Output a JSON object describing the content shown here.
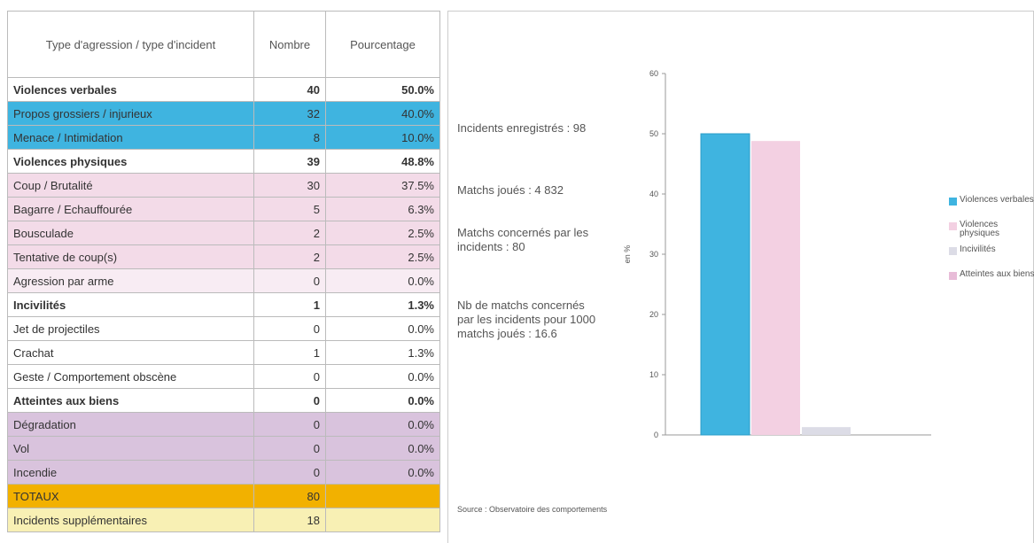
{
  "table": {
    "header": [
      "Type d'agression / type d'incident",
      "Nombre",
      "Pourcentage"
    ],
    "rows": [
      {
        "cells": [
          "Violences verbales",
          "40",
          "50.0%"
        ],
        "bold": true,
        "color": "#ffffff"
      },
      {
        "cells": [
          "Propos grossiers / injurieux",
          "32",
          "40.0%"
        ],
        "bold": false,
        "color": "#3fb4e0"
      },
      {
        "cells": [
          "Menace / Intimidation",
          "8",
          "10.0%"
        ],
        "bold": false,
        "color": "#3fb4e0"
      },
      {
        "cells": [
          "Violences physiques",
          "39",
          "48.8%"
        ],
        "bold": true,
        "color": "#ffffff"
      },
      {
        "cells": [
          "Coup / Brutalité",
          "30",
          "37.5%"
        ],
        "bold": false,
        "color": "#f3dbe8"
      },
      {
        "cells": [
          "Bagarre / Echauffourée",
          "5",
          "6.3%"
        ],
        "bold": false,
        "color": "#f3dbe8"
      },
      {
        "cells": [
          "Bousculade",
          "2",
          "2.5%"
        ],
        "bold": false,
        "color": "#f3dbe8"
      },
      {
        "cells": [
          "Tentative de coup(s)",
          "2",
          "2.5%"
        ],
        "bold": false,
        "color": "#f3dbe8"
      },
      {
        "cells": [
          "Agression par arme",
          "0",
          "0.0%"
        ],
        "bold": false,
        "color": "#f8ecf3"
      },
      {
        "cells": [
          "Incivilités",
          "1",
          "1.3%"
        ],
        "bold": true,
        "color": "#ffffff"
      },
      {
        "cells": [
          "Jet de projectiles",
          "0",
          "0.0%"
        ],
        "bold": false,
        "color": "#ffffff"
      },
      {
        "cells": [
          "Crachat",
          "1",
          "1.3%"
        ],
        "bold": false,
        "color": "#ffffff"
      },
      {
        "cells": [
          "Geste / Comportement obscène",
          "0",
          "0.0%"
        ],
        "bold": false,
        "color": "#ffffff"
      },
      {
        "cells": [
          "Atteintes aux biens",
          "0",
          "0.0%"
        ],
        "bold": true,
        "color": "#ffffff"
      },
      {
        "cells": [
          "Dégradation",
          "0",
          "0.0%"
        ],
        "bold": false,
        "color": "#d9c3dd"
      },
      {
        "cells": [
          "Vol",
          "0",
          "0.0%"
        ],
        "bold": false,
        "color": "#d9c3dd"
      },
      {
        "cells": [
          "Incendie",
          "0",
          "0.0%"
        ],
        "bold": false,
        "color": "#d9c3dd"
      },
      {
        "cells": [
          "TOTAUX",
          "80",
          ""
        ],
        "bold": false,
        "color": "#f2b100"
      },
      {
        "cells": [
          "Incidents supplémentaires",
          "18",
          ""
        ],
        "bold": false,
        "color": "#f8f0b4"
      }
    ]
  },
  "info": [
    "Incidents enregistrés : 98",
    "Matchs joués : 4 832",
    "Matchs concernés par les incidents : 80",
    "Nb de matchs concernés par les incidents pour 1000 matchs joués : 16.6"
  ],
  "source": "Source : Observatoire des comportements",
  "chart_data": {
    "type": "bar",
    "ylabel": "en %",
    "ylim": [
      0,
      60
    ],
    "yticks": [
      0,
      10,
      20,
      30,
      40,
      50,
      60
    ],
    "series": [
      {
        "name": "Violences verbales",
        "color": "#3fb4e0",
        "values": [
          50
        ]
      },
      {
        "name": "Violences physiques",
        "color": "#f3d0e2",
        "values": [
          48.8
        ]
      },
      {
        "name": "Incivilités",
        "color": "#dcdce6",
        "values": [
          1.3
        ]
      },
      {
        "name": "Atteintes aux biens",
        "color": "#e8bcd8",
        "values": [
          0
        ]
      }
    ]
  }
}
